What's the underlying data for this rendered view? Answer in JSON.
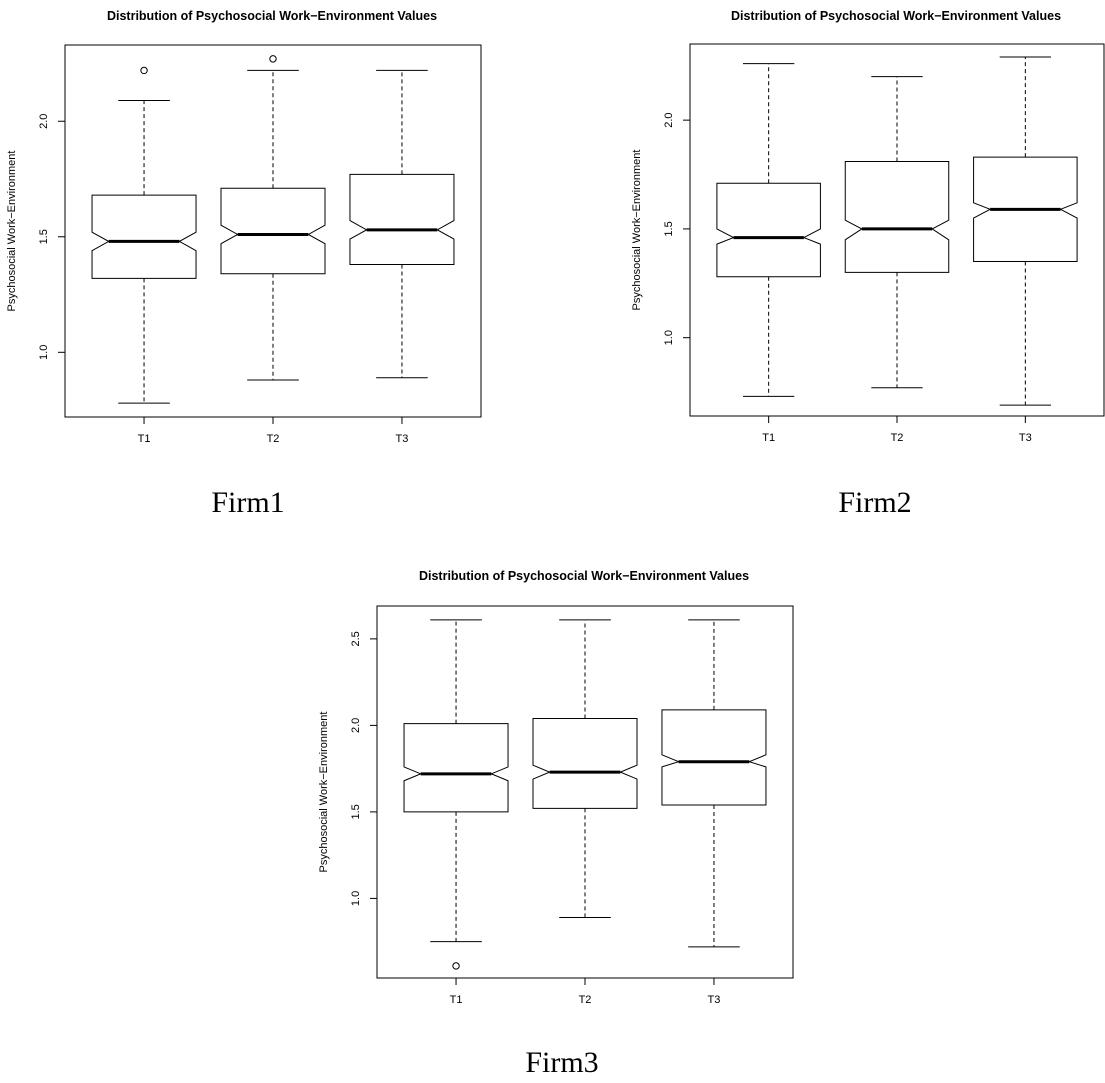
{
  "figure": {
    "panels": [
      {
        "caption": "Firm1"
      },
      {
        "caption": "Firm2"
      },
      {
        "caption": "Firm3"
      }
    ]
  },
  "chart_data": [
    {
      "type": "boxplot",
      "notched": true,
      "title": "Distribution of Psychosocial Work−Environment Values",
      "xlabel": "",
      "ylabel": "Psychosocial Work−Environment",
      "categories": [
        "T1",
        "T2",
        "T3"
      ],
      "ylim": [
        0.72,
        2.33
      ],
      "yticks": [
        1.0,
        1.5,
        2.0
      ],
      "ytick_labels": [
        "1.0",
        "1.5",
        "2.0"
      ],
      "boxes": [
        {
          "min": 0.78,
          "q1": 1.32,
          "median": 1.48,
          "q3": 1.68,
          "max": 2.09,
          "notch_low": 1.44,
          "notch_high": 1.52,
          "outliers": [
            2.22
          ]
        },
        {
          "min": 0.88,
          "q1": 1.34,
          "median": 1.51,
          "q3": 1.71,
          "max": 2.22,
          "notch_low": 1.47,
          "notch_high": 1.55,
          "outliers": [
            2.27
          ]
        },
        {
          "min": 0.89,
          "q1": 1.38,
          "median": 1.53,
          "q3": 1.77,
          "max": 2.22,
          "notch_low": 1.49,
          "notch_high": 1.57,
          "outliers": []
        }
      ]
    },
    {
      "type": "boxplot",
      "notched": true,
      "title": "Distribution of Psychosocial Work−Environment Values",
      "xlabel": "",
      "ylabel": "Psychosocial Work−Environment",
      "categories": [
        "T1",
        "T2",
        "T3"
      ],
      "ylim": [
        0.64,
        2.35
      ],
      "yticks": [
        1.0,
        1.5,
        2.0
      ],
      "ytick_labels": [
        "1.0",
        "1.5",
        "2.0"
      ],
      "boxes": [
        {
          "min": 0.73,
          "q1": 1.28,
          "median": 1.46,
          "q3": 1.71,
          "max": 2.26,
          "notch_low": 1.43,
          "notch_high": 1.5,
          "outliers": []
        },
        {
          "min": 0.77,
          "q1": 1.3,
          "median": 1.5,
          "q3": 1.81,
          "max": 2.2,
          "notch_low": 1.45,
          "notch_high": 1.54,
          "outliers": []
        },
        {
          "min": 0.69,
          "q1": 1.35,
          "median": 1.59,
          "q3": 1.83,
          "max": 2.29,
          "notch_low": 1.55,
          "notch_high": 1.62,
          "outliers": []
        }
      ]
    },
    {
      "type": "boxplot",
      "notched": true,
      "title": "Distribution of Psychosocial Work−Environment Values",
      "xlabel": "",
      "ylabel": "Psychosocial Work−Environment",
      "categories": [
        "T1",
        "T2",
        "T3"
      ],
      "ylim": [
        0.54,
        2.69
      ],
      "yticks": [
        1.0,
        1.5,
        2.0,
        2.5
      ],
      "ytick_labels": [
        "1.0",
        "1.5",
        "2.0",
        "2.5"
      ],
      "boxes": [
        {
          "min": 0.75,
          "q1": 1.5,
          "median": 1.72,
          "q3": 2.01,
          "max": 2.61,
          "notch_low": 1.68,
          "notch_high": 1.76,
          "outliers": [
            0.61
          ]
        },
        {
          "min": 0.89,
          "q1": 1.52,
          "median": 1.73,
          "q3": 2.04,
          "max": 2.61,
          "notch_low": 1.69,
          "notch_high": 1.77,
          "outliers": []
        },
        {
          "min": 0.72,
          "q1": 1.54,
          "median": 1.79,
          "q3": 2.09,
          "max": 2.61,
          "notch_low": 1.76,
          "notch_high": 1.83,
          "outliers": []
        }
      ]
    }
  ]
}
